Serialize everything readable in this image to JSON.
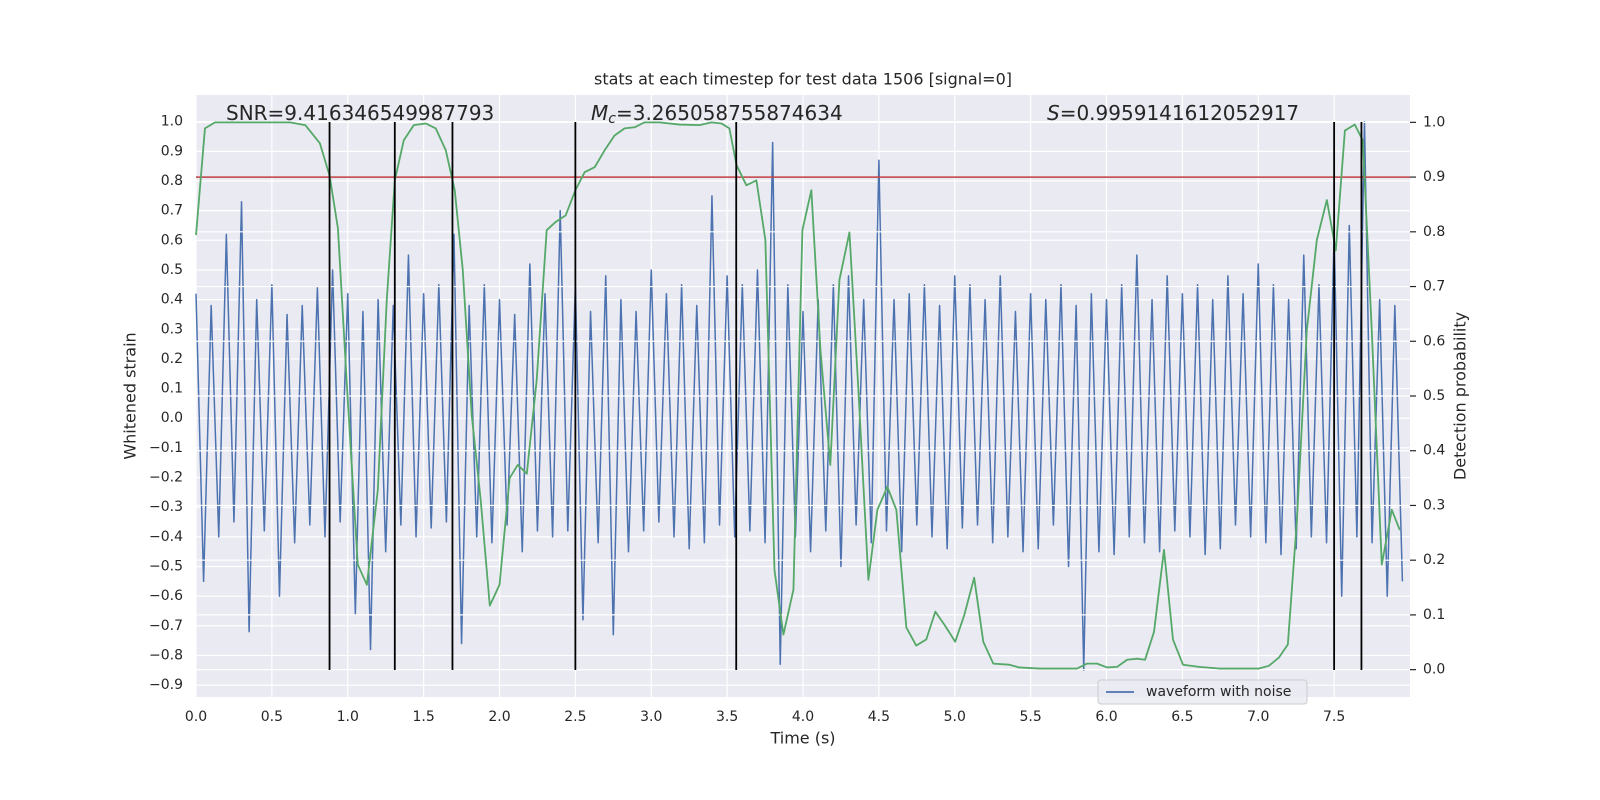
{
  "chart_data": {
    "type": "line",
    "title": "stats at each timestep for test data 1506 [signal=0]",
    "xlabel": "Time (s)",
    "ylabel": "Whitened strain",
    "y2label": "Detection probability",
    "annotations": [
      {
        "text": "SNR=9.416346549987793"
      },
      {
        "symbol": "M",
        "subscript": "c",
        "text": "=3.265058755874634"
      },
      {
        "symbol": "S",
        "text": "=0.9959141612052917"
      }
    ],
    "xlim": [
      0,
      8.0
    ],
    "ylim": [
      -0.94,
      1.09
    ],
    "y2lim": [
      -0.05,
      1.05
    ],
    "xticks": [
      {
        "value": 0,
        "label": "0.0"
      },
      0.5,
      {
        "value": 1,
        "label": "1.0"
      },
      1.5,
      {
        "value": 2,
        "label": "2.0"
      },
      2.5,
      {
        "value": 3,
        "label": "3.0"
      },
      3.5,
      {
        "value": 4,
        "label": "4.0"
      },
      4.5,
      {
        "value": 5,
        "label": "5.0"
      },
      5.5,
      {
        "value": 6,
        "label": "6.0"
      },
      6.5,
      {
        "value": 7,
        "label": "7.0"
      },
      7.5
    ],
    "yticks": [
      {
        "value": 1,
        "label": "1.0"
      },
      0.9,
      0.8,
      0.7,
      0.6,
      0.5,
      0.4,
      0.3,
      0.2,
      0.1,
      {
        "value": 0,
        "label": "0.0"
      },
      {
        "value": -0.1,
        "label": "−0.1"
      },
      {
        "value": -0.2,
        "label": "−0.2"
      },
      {
        "value": -0.3,
        "label": "−0.3"
      },
      {
        "value": -0.4,
        "label": "−0.4"
      },
      {
        "value": -0.5,
        "label": "−0.5"
      },
      {
        "value": -0.6,
        "label": "−0.6"
      },
      {
        "value": -0.7,
        "label": "−0.7"
      },
      {
        "value": -0.8,
        "label": "−0.8"
      },
      {
        "value": -0.9,
        "label": "−0.9"
      }
    ],
    "y2ticks": [
      {
        "value": 0,
        "label": "0.0"
      },
      0.1,
      0.2,
      0.3,
      0.4,
      0.5,
      0.6,
      0.7,
      0.8,
      0.9,
      {
        "value": 1,
        "label": "1.0"
      }
    ],
    "grid": true,
    "legend": "lower right",
    "threshold": {
      "value": 0.9,
      "axis": "y2",
      "color": "#c03d3e"
    },
    "vlines": [
      0.88,
      1.31,
      1.69,
      2.5,
      3.56,
      7.5,
      7.68
    ],
    "vline_color": "#000000",
    "series": [
      {
        "name": "waveform with noise",
        "color": "#4c72b0",
        "x": [
          0,
          0.05,
          0.1,
          0.15,
          0.2,
          0.25,
          0.3,
          0.35,
          0.4,
          0.45,
          0.5,
          0.55,
          0.6,
          0.65,
          0.7,
          0.75,
          0.8,
          0.85,
          0.9,
          0.95,
          1,
          1.05,
          1.1,
          1.15,
          1.2,
          1.25,
          1.3,
          1.35,
          1.4,
          1.45,
          1.5,
          1.55,
          1.6,
          1.65,
          1.7,
          1.75,
          1.8,
          1.85,
          1.9,
          1.95,
          2,
          2.05,
          2.1,
          2.15,
          2.2,
          2.25,
          2.3,
          2.35,
          2.4,
          2.45,
          2.5,
          2.55,
          2.6,
          2.65,
          2.7,
          2.75,
          2.8,
          2.85,
          2.9,
          2.95,
          3,
          3.05,
          3.1,
          3.15,
          3.2,
          3.25,
          3.3,
          3.35,
          3.4,
          3.45,
          3.5,
          3.55,
          3.6,
          3.65,
          3.7,
          3.75,
          3.8,
          3.85,
          3.9,
          3.95,
          4,
          4.05,
          4.1,
          4.15,
          4.2,
          4.25,
          4.3,
          4.35,
          4.4,
          4.45,
          4.5,
          4.55,
          4.6,
          4.65,
          4.7,
          4.75,
          4.8,
          4.85,
          4.9,
          4.95,
          5,
          5.05,
          5.1,
          5.15,
          5.2,
          5.25,
          5.3,
          5.35,
          5.4,
          5.45,
          5.5,
          5.55,
          5.6,
          5.65,
          5.7,
          5.75,
          5.8,
          5.85,
          5.9,
          5.95,
          6,
          6.05,
          6.1,
          6.15,
          6.2,
          6.25,
          6.3,
          6.35,
          6.4,
          6.45,
          6.5,
          6.55,
          6.6,
          6.65,
          6.7,
          6.75,
          6.8,
          6.85,
          6.9,
          6.95,
          7,
          7.05,
          7.1,
          7.15,
          7.2,
          7.25,
          7.3,
          7.35,
          7.4,
          7.45,
          7.5,
          7.55,
          7.6,
          7.65,
          7.7,
          7.75,
          7.8,
          7.85,
          7.9,
          7.95
        ],
        "values": [
          0.42,
          -0.55,
          0.38,
          -0.4,
          0.62,
          -0.35,
          0.73,
          -0.72,
          0.4,
          -0.38,
          0.45,
          -0.6,
          0.35,
          -0.42,
          0.38,
          -0.36,
          0.44,
          -0.4,
          0.5,
          -0.35,
          0.42,
          -0.66,
          0.36,
          -0.78,
          0.4,
          -0.45,
          0.38,
          -0.36,
          0.55,
          -0.4,
          0.42,
          -0.37,
          0.45,
          -0.35,
          0.62,
          -0.76,
          0.38,
          -0.4,
          0.45,
          -0.42,
          0.4,
          -0.36,
          0.35,
          -0.45,
          0.52,
          -0.38,
          0.42,
          -0.4,
          0.7,
          -0.38,
          0.45,
          -0.68,
          0.36,
          -0.42,
          0.48,
          -0.73,
          0.4,
          -0.45,
          0.36,
          -0.38,
          0.5,
          -0.35,
          0.42,
          -0.4,
          0.45,
          -0.44,
          0.38,
          -0.42,
          0.75,
          -0.36,
          0.48,
          -0.4,
          0.45,
          -0.38,
          0.5,
          -0.42,
          0.93,
          -0.83,
          0.45,
          -0.4,
          0.36,
          -0.45,
          0.4,
          -0.38,
          0.45,
          -0.5,
          0.48,
          -0.36,
          0.4,
          -0.42,
          0.87,
          -0.38,
          0.4,
          -0.45,
          0.42,
          -0.36,
          0.45,
          -0.4,
          0.38,
          -0.44,
          0.48,
          -0.37,
          0.45,
          -0.36,
          0.4,
          -0.42,
          0.48,
          -0.4,
          0.36,
          -0.45,
          0.42,
          -0.44,
          0.4,
          -0.36,
          0.45,
          -0.5,
          0.38,
          -0.85,
          0.42,
          -0.45,
          0.4,
          -0.46,
          0.45,
          -0.4,
          0.55,
          -0.42,
          0.4,
          -0.45,
          0.48,
          -0.38,
          0.42,
          -0.4,
          0.45,
          -0.46,
          0.4,
          -0.44,
          0.48,
          -0.36,
          0.42,
          -0.4,
          0.52,
          -0.42,
          0.45,
          -0.46,
          0.4,
          -0.44,
          0.55,
          -0.4,
          0.45,
          -0.42,
          0.62,
          -0.6,
          0.65,
          -0.4,
          1.0,
          -0.42,
          0.4,
          -0.6,
          0.38,
          -0.55
        ]
      },
      {
        "axis": "y2",
        "color": "#55a868",
        "x": [
          0,
          0.059,
          0.125,
          0.62,
          0.72,
          0.816,
          0.88,
          0.935,
          1.0,
          1.066,
          1.126,
          1.198,
          1.257,
          1.31,
          1.369,
          1.435,
          1.514,
          1.58,
          1.646,
          1.705,
          1.758,
          1.817,
          1.876,
          1.936,
          2.0,
          2.067,
          2.12,
          2.18,
          2.245,
          2.311,
          2.37,
          2.436,
          2.5,
          2.561,
          2.627,
          2.693,
          2.758,
          2.824,
          2.89,
          2.956,
          3.055,
          3.186,
          3.318,
          3.397,
          3.463,
          3.515,
          3.562,
          3.627,
          3.693,
          3.752,
          3.812,
          3.871,
          3.937,
          3.996,
          4.055,
          4.115,
          4.18,
          4.24,
          4.306,
          4.365,
          4.431,
          4.49,
          4.556,
          4.615,
          4.681,
          4.746,
          4.812,
          4.872,
          4.937,
          5.003,
          5.063,
          5.128,
          5.188,
          5.254,
          5.359,
          5.425,
          5.556,
          5.806,
          5.872,
          5.938,
          6.004,
          6.07,
          6.136,
          6.201,
          6.254,
          6.313,
          6.379,
          6.438,
          6.504,
          6.61,
          6.741,
          7.005,
          7.07,
          7.136,
          7.195,
          7.255,
          7.32,
          7.386,
          7.452,
          7.511,
          7.571,
          7.636,
          7.689,
          7.748,
          7.814,
          7.88,
          7.933
        ],
        "values": [
          0.794,
          0.989,
          1.0,
          1.0,
          0.995,
          0.962,
          0.903,
          0.807,
          0.493,
          0.192,
          0.155,
          0.328,
          0.675,
          0.894,
          0.967,
          0.995,
          0.998,
          0.989,
          0.949,
          0.876,
          0.73,
          0.465,
          0.31,
          0.117,
          0.155,
          0.35,
          0.374,
          0.358,
          0.529,
          0.803,
          0.818,
          0.83,
          0.876,
          0.909,
          0.918,
          0.949,
          0.976,
          0.989,
          0.991,
          1.0,
          1.0,
          0.996,
          0.995,
          1.0,
          0.998,
          0.989,
          0.922,
          0.885,
          0.894,
          0.785,
          0.182,
          0.064,
          0.146,
          0.803,
          0.876,
          0.584,
          0.374,
          0.712,
          0.799,
          0.511,
          0.164,
          0.292,
          0.334,
          0.292,
          0.077,
          0.044,
          0.055,
          0.106,
          0.08,
          0.051,
          0.1,
          0.168,
          0.051,
          0.011,
          0.009,
          0.004,
          0.002,
          0.002,
          0.011,
          0.011,
          0.004,
          0.005,
          0.018,
          0.02,
          0.018,
          0.069,
          0.219,
          0.055,
          0.009,
          0.005,
          0.002,
          0.002,
          0.007,
          0.022,
          0.046,
          0.274,
          0.62,
          0.785,
          0.858,
          0.766,
          0.985,
          0.996,
          0.967,
          0.62,
          0.192,
          0.292,
          0.255
        ]
      }
    ]
  }
}
